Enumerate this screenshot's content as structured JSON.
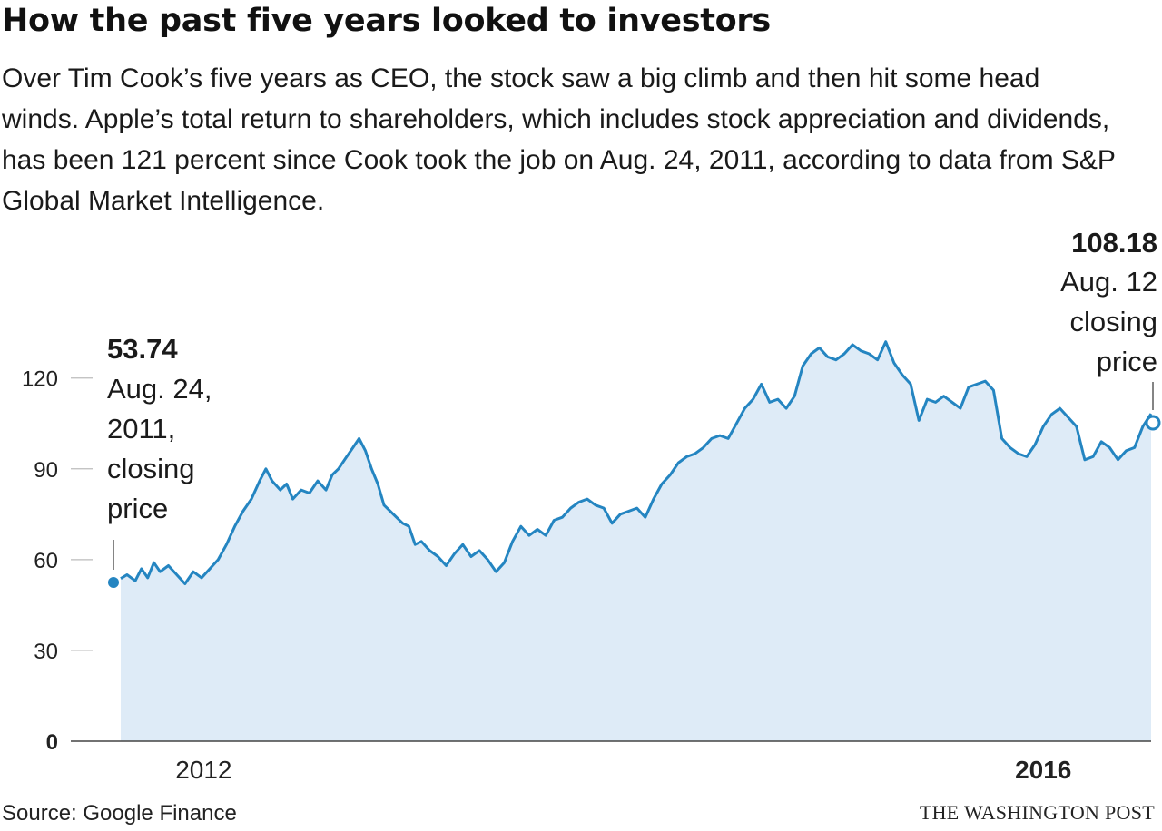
{
  "title": "How the past five years looked to investors",
  "subtitle": "Over Tim Cook’s five years as CEO, the stock saw a big climb and then hit some head winds. Apple’s total return to shareholders, which includes stock appreciation and dividends, has been 121 percent since Cook took the job on Aug. 24, 2011, according to data from S&P Global Market Intelligence.",
  "colors": {
    "line": "#2485c1",
    "fill": "#deebf7",
    "grid": "#bbbbbb",
    "axis": "#444444"
  },
  "chart_data": {
    "type": "area",
    "title": "How the past five years looked to investors",
    "ylabel": "",
    "xlabel": "",
    "ylim": [
      0,
      140
    ],
    "yticks": [
      "0",
      "30",
      "60",
      "90",
      "120"
    ],
    "xrange": [
      2011.65,
      2016.62
    ],
    "xticks": [
      {
        "label": "2012",
        "x": 2012.05,
        "bold": false
      },
      {
        "label": "2016",
        "x": 2016.1,
        "bold": true
      }
    ],
    "grid": true,
    "series": [
      {
        "name": "Apple closing price",
        "points": [
          [
            2011.65,
            53.74
          ],
          [
            2011.68,
            55
          ],
          [
            2011.72,
            53
          ],
          [
            2011.75,
            57
          ],
          [
            2011.78,
            54
          ],
          [
            2011.81,
            59
          ],
          [
            2011.84,
            56
          ],
          [
            2011.88,
            58
          ],
          [
            2011.92,
            55
          ],
          [
            2011.96,
            52
          ],
          [
            2012.0,
            56
          ],
          [
            2012.04,
            54
          ],
          [
            2012.08,
            57
          ],
          [
            2012.12,
            60
          ],
          [
            2012.16,
            65
          ],
          [
            2012.2,
            71
          ],
          [
            2012.24,
            76
          ],
          [
            2012.28,
            80
          ],
          [
            2012.32,
            86
          ],
          [
            2012.35,
            90
          ],
          [
            2012.38,
            86
          ],
          [
            2012.42,
            83
          ],
          [
            2012.45,
            85
          ],
          [
            2012.48,
            80
          ],
          [
            2012.52,
            83
          ],
          [
            2012.56,
            82
          ],
          [
            2012.6,
            86
          ],
          [
            2012.64,
            83
          ],
          [
            2012.67,
            88
          ],
          [
            2012.7,
            90
          ],
          [
            2012.74,
            94
          ],
          [
            2012.77,
            97
          ],
          [
            2012.8,
            100
          ],
          [
            2012.83,
            96
          ],
          [
            2012.86,
            90
          ],
          [
            2012.89,
            85
          ],
          [
            2012.92,
            78
          ],
          [
            2012.95,
            76
          ],
          [
            2012.98,
            74
          ],
          [
            2013.01,
            72
          ],
          [
            2013.04,
            71
          ],
          [
            2013.07,
            65
          ],
          [
            2013.1,
            66
          ],
          [
            2013.14,
            63
          ],
          [
            2013.18,
            61
          ],
          [
            2013.22,
            58
          ],
          [
            2013.26,
            62
          ],
          [
            2013.3,
            65
          ],
          [
            2013.34,
            61
          ],
          [
            2013.38,
            63
          ],
          [
            2013.42,
            60
          ],
          [
            2013.46,
            56
          ],
          [
            2013.5,
            59
          ],
          [
            2013.54,
            66
          ],
          [
            2013.58,
            71
          ],
          [
            2013.62,
            68
          ],
          [
            2013.66,
            70
          ],
          [
            2013.7,
            68
          ],
          [
            2013.74,
            73
          ],
          [
            2013.78,
            74
          ],
          [
            2013.82,
            77
          ],
          [
            2013.86,
            79
          ],
          [
            2013.9,
            80
          ],
          [
            2013.94,
            78
          ],
          [
            2013.98,
            77
          ],
          [
            2014.02,
            72
          ],
          [
            2014.06,
            75
          ],
          [
            2014.1,
            76
          ],
          [
            2014.14,
            77
          ],
          [
            2014.18,
            74
          ],
          [
            2014.22,
            80
          ],
          [
            2014.26,
            85
          ],
          [
            2014.3,
            88
          ],
          [
            2014.34,
            92
          ],
          [
            2014.38,
            94
          ],
          [
            2014.42,
            95
          ],
          [
            2014.46,
            97
          ],
          [
            2014.5,
            100
          ],
          [
            2014.54,
            101
          ],
          [
            2014.58,
            100
          ],
          [
            2014.62,
            105
          ],
          [
            2014.66,
            110
          ],
          [
            2014.7,
            113
          ],
          [
            2014.74,
            118
          ],
          [
            2014.78,
            112
          ],
          [
            2014.82,
            113
          ],
          [
            2014.86,
            110
          ],
          [
            2014.9,
            114
          ],
          [
            2014.94,
            124
          ],
          [
            2014.98,
            128
          ],
          [
            2015.02,
            130
          ],
          [
            2015.06,
            127
          ],
          [
            2015.1,
            126
          ],
          [
            2015.14,
            128
          ],
          [
            2015.18,
            131
          ],
          [
            2015.22,
            129
          ],
          [
            2015.26,
            128
          ],
          [
            2015.3,
            126
          ],
          [
            2015.34,
            132
          ],
          [
            2015.38,
            125
          ],
          [
            2015.42,
            121
          ],
          [
            2015.46,
            118
          ],
          [
            2015.5,
            106
          ],
          [
            2015.54,
            113
          ],
          [
            2015.58,
            112
          ],
          [
            2015.62,
            114
          ],
          [
            2015.66,
            112
          ],
          [
            2015.7,
            110
          ],
          [
            2015.74,
            117
          ],
          [
            2015.78,
            118
          ],
          [
            2015.82,
            119
          ],
          [
            2015.86,
            116
          ],
          [
            2015.9,
            100
          ],
          [
            2015.94,
            97
          ],
          [
            2015.98,
            95
          ],
          [
            2016.02,
            94
          ],
          [
            2016.06,
            98
          ],
          [
            2016.1,
            104
          ],
          [
            2016.14,
            108
          ],
          [
            2016.18,
            110
          ],
          [
            2016.22,
            107
          ],
          [
            2016.26,
            104
          ],
          [
            2016.3,
            93
          ],
          [
            2016.34,
            94
          ],
          [
            2016.38,
            99
          ],
          [
            2016.42,
            97
          ],
          [
            2016.46,
            93
          ],
          [
            2016.5,
            96
          ],
          [
            2016.54,
            97
          ],
          [
            2016.58,
            104
          ],
          [
            2016.62,
            108.18
          ]
        ]
      }
    ],
    "annotations": [
      {
        "id": "start",
        "value": "53.74",
        "lines": [
          "Aug. 24,",
          "2011,",
          "closing",
          "price"
        ],
        "x": 2011.65,
        "y": 53.74
      },
      {
        "id": "end",
        "value": "108.18",
        "lines": [
          "Aug. 12",
          "closing",
          "price"
        ],
        "x": 2016.62,
        "y": 108.18
      }
    ]
  },
  "footer": {
    "source": "Source: Google Finance",
    "credit": "THE WASHINGTON POST"
  }
}
